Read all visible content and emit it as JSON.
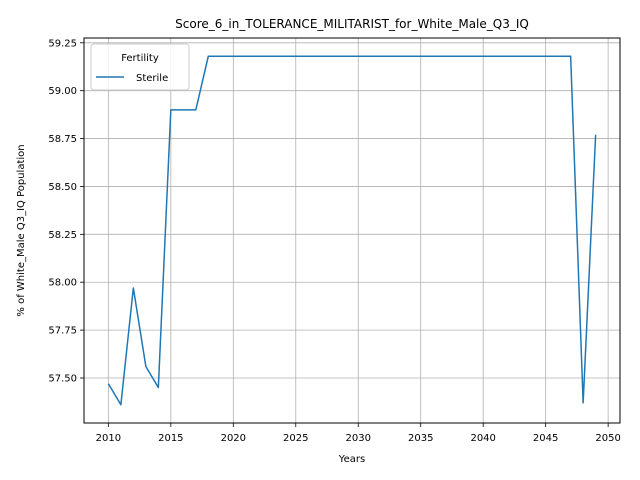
{
  "chart_data": {
    "type": "line",
    "title": "Score_6_in_TOLERANCE_MILITARIST_for_White_Male_Q3_IQ",
    "xlabel": "Years",
    "ylabel": "% of White_Male Q3_IQ Population",
    "xlim": [
      2008.05,
      2050.95
    ],
    "ylim": [
      57.265,
      59.275
    ],
    "xticks": [
      2010,
      2015,
      2020,
      2025,
      2030,
      2035,
      2040,
      2045,
      2050
    ],
    "yticks": [
      57.5,
      57.75,
      58.0,
      58.25,
      58.5,
      58.75,
      59.0,
      59.25
    ],
    "ytick_labels": [
      "57.50",
      "57.75",
      "58.00",
      "58.25",
      "58.50",
      "58.75",
      "59.00",
      "59.25"
    ],
    "grid": true,
    "legend": {
      "title": "Fertility",
      "position": "top-left"
    },
    "series": [
      {
        "name": "Sterile",
        "color": "#1f77b4",
        "x": [
          2010,
          2011,
          2012,
          2013,
          2014,
          2015,
          2016,
          2017,
          2018,
          2019,
          2020,
          2021,
          2022,
          2023,
          2024,
          2025,
          2026,
          2027,
          2028,
          2029,
          2030,
          2031,
          2032,
          2033,
          2034,
          2035,
          2036,
          2037,
          2038,
          2039,
          2040,
          2041,
          2042,
          2043,
          2044,
          2045,
          2046,
          2047,
          2048,
          2049
        ],
        "y": [
          57.47,
          57.36,
          57.97,
          57.56,
          57.45,
          58.9,
          58.9,
          58.9,
          59.18,
          59.18,
          59.18,
          59.18,
          59.18,
          59.18,
          59.18,
          59.18,
          59.18,
          59.18,
          59.18,
          59.18,
          59.18,
          59.18,
          59.18,
          59.18,
          59.18,
          59.18,
          59.18,
          59.18,
          59.18,
          59.18,
          59.18,
          59.18,
          59.18,
          59.18,
          59.18,
          59.18,
          59.18,
          59.18,
          57.37,
          58.77
        ]
      }
    ]
  }
}
